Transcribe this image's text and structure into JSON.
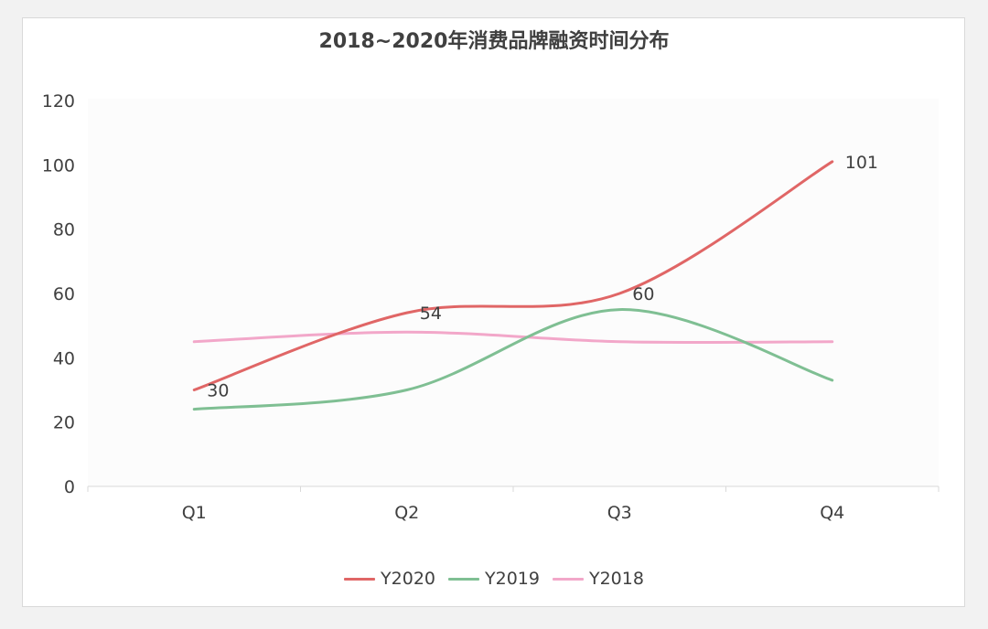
{
  "chart_data": {
    "type": "line",
    "title": "2018~2020年消费品牌融资时间分布",
    "categories": [
      "Q1",
      "Q2",
      "Q3",
      "Q4"
    ],
    "ylim": [
      0,
      120
    ],
    "yticks": [
      0,
      20,
      40,
      60,
      80,
      100,
      120
    ],
    "smooth": true,
    "grid": false,
    "legend_position": "bottom",
    "series": [
      {
        "name": "Y2020",
        "color": "#e06666",
        "values": [
          30,
          54,
          60,
          101
        ],
        "labels": [
          "30",
          "54",
          "60",
          "101"
        ]
      },
      {
        "name": "Y2019",
        "color": "#7fbf93",
        "values": [
          24,
          30,
          55,
          33
        ]
      },
      {
        "name": "Y2018",
        "color": "#f2a7c9",
        "values": [
          45,
          48,
          45,
          45
        ]
      }
    ]
  }
}
